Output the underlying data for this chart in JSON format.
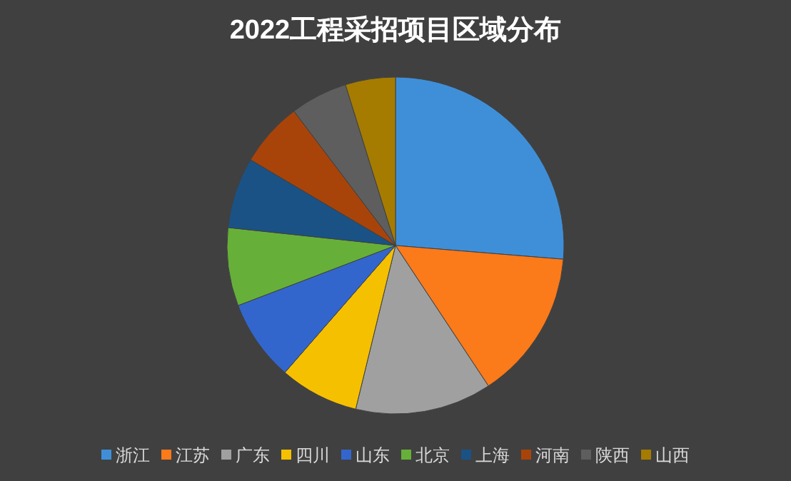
{
  "chart_data": {
    "type": "pie",
    "title": "2022工程采招项目区域分布",
    "categories": [
      "浙江",
      "江苏",
      "广东",
      "四川",
      "山东",
      "北京",
      "上海",
      "河南",
      "陕西",
      "山西"
    ],
    "values": [
      26.3,
      14.4,
      13.1,
      7.6,
      7.8,
      7.5,
      6.8,
      6.2,
      5.5,
      4.8
    ],
    "colors": [
      "#3f8fd8",
      "#fb7a1a",
      "#a0a0a0",
      "#f5c000",
      "#3366cc",
      "#66b03a",
      "#1a5286",
      "#a8440a",
      "#5e5e5e",
      "#a57c00"
    ],
    "legend": "bottom"
  }
}
